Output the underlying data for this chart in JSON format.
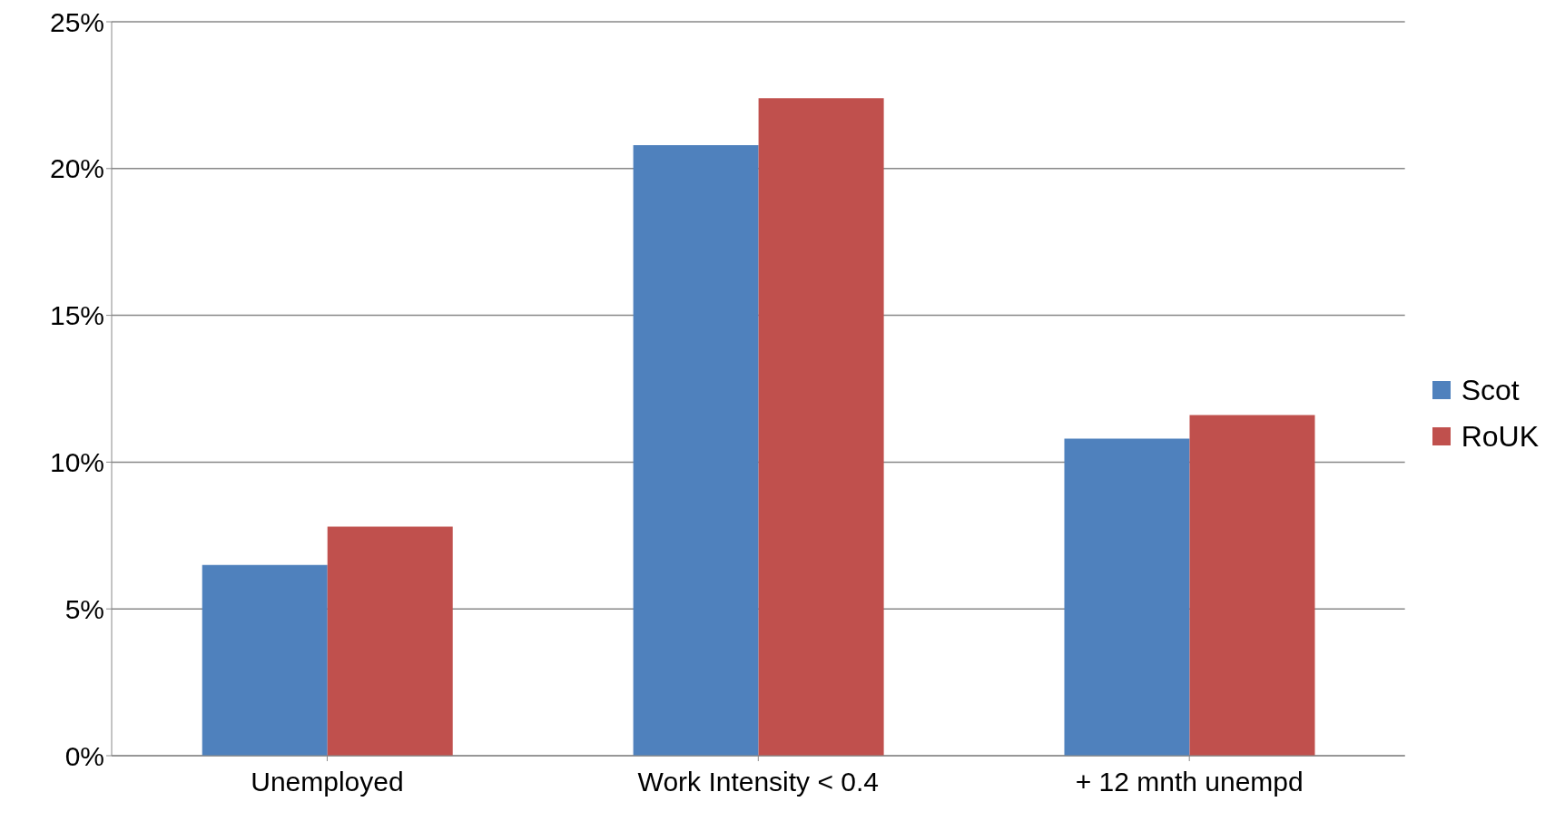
{
  "chart_data": {
    "type": "bar",
    "categories": [
      "Unemployed",
      "Work Intensity < 0.4",
      "+ 12 mnth unempd"
    ],
    "series": [
      {
        "name": "Scot",
        "color": "#4f81bd",
        "values": [
          6.5,
          20.8,
          10.8
        ]
      },
      {
        "name": "RoUK",
        "color": "#c0504d",
        "values": [
          7.8,
          22.4,
          11.6
        ]
      }
    ],
    "ylim": [
      0,
      25
    ],
    "yticks": [
      {
        "value": 0,
        "label": "0%"
      },
      {
        "value": 5,
        "label": "5%"
      },
      {
        "value": 10,
        "label": "10%"
      },
      {
        "value": 15,
        "label": "15%"
      },
      {
        "value": 20,
        "label": "20%"
      },
      {
        "value": 25,
        "label": "25%"
      }
    ],
    "grid": "y",
    "legend": "right"
  }
}
